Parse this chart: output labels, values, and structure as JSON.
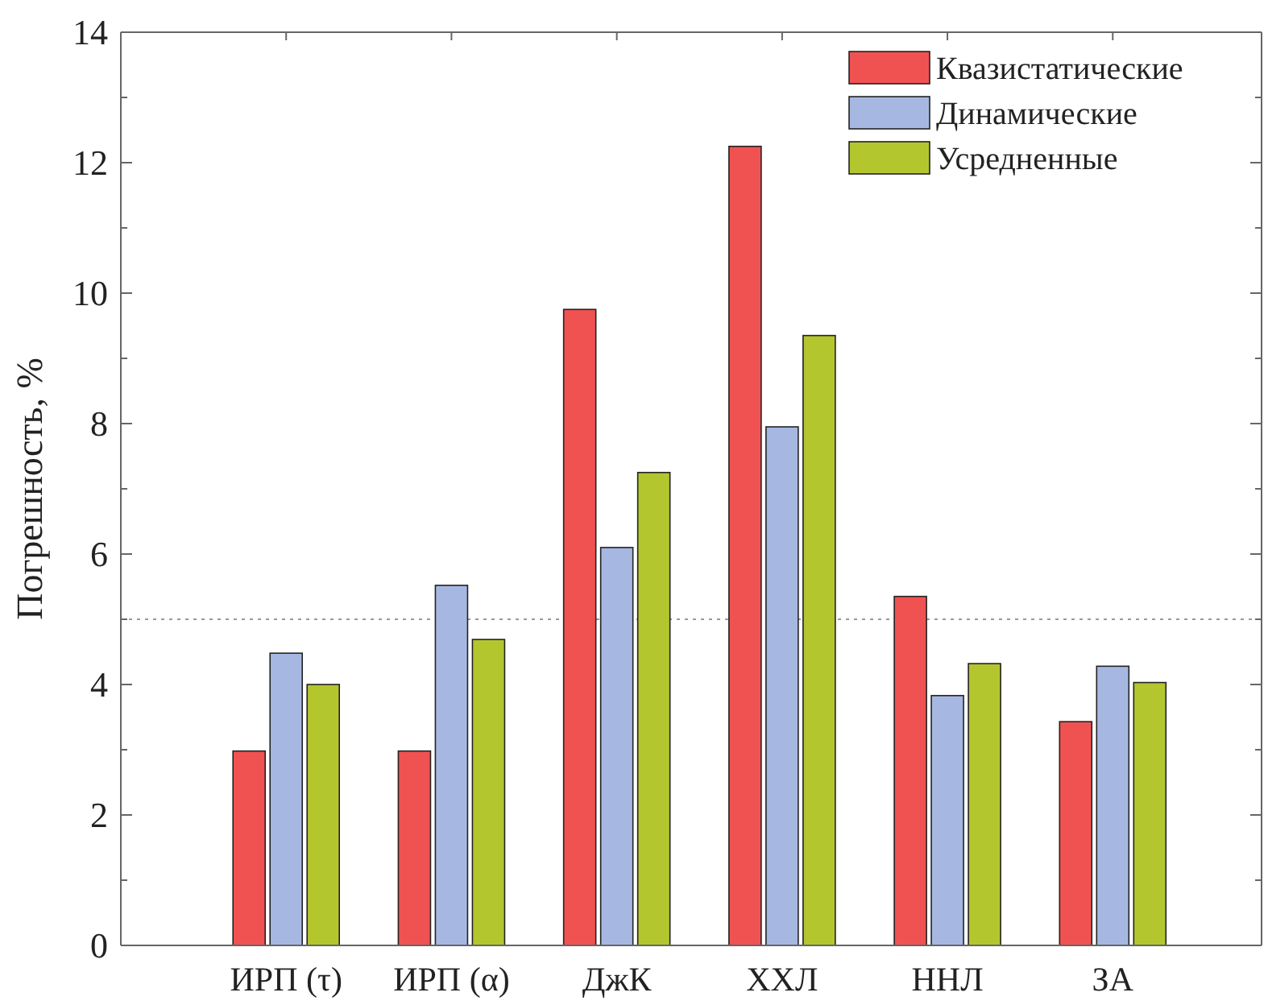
{
  "chart_data": {
    "type": "bar",
    "ylabel": "Погрешность, %",
    "categories": [
      "ИРП (τ)",
      "ИРП (α)",
      "ДжК",
      "ХХЛ",
      "ННЛ",
      "ЗА"
    ],
    "series": [
      {
        "name": "Квазистатические",
        "color": "#f05252",
        "values": [
          2.98,
          2.98,
          9.75,
          12.25,
          5.35,
          3.43
        ]
      },
      {
        "name": "Динамические",
        "color": "#a6b8e2",
        "values": [
          4.48,
          5.52,
          6.1,
          7.95,
          3.83,
          4.28
        ]
      },
      {
        "name": "Усредненные",
        "color": "#b4c62e",
        "values": [
          4.0,
          4.69,
          7.25,
          9.35,
          4.32,
          4.03
        ]
      }
    ],
    "ylim": [
      0,
      14
    ],
    "yticks": [
      0,
      {
        "value": 1,
        "label": null
      },
      2,
      {
        "value": 3,
        "label": null
      },
      4,
      {
        "value": 5,
        "label": null
      },
      6,
      {
        "value": 7,
        "label": null
      },
      8,
      {
        "value": 9,
        "label": null
      },
      10,
      {
        "value": 11,
        "label": null
      },
      12,
      {
        "value": 13,
        "label": null
      },
      14
    ],
    "ref_lines": [
      {
        "axis": "y",
        "value": 5,
        "color": "#999999",
        "line_style": "dotted"
      }
    ],
    "legend": "top right",
    "grid": false
  }
}
